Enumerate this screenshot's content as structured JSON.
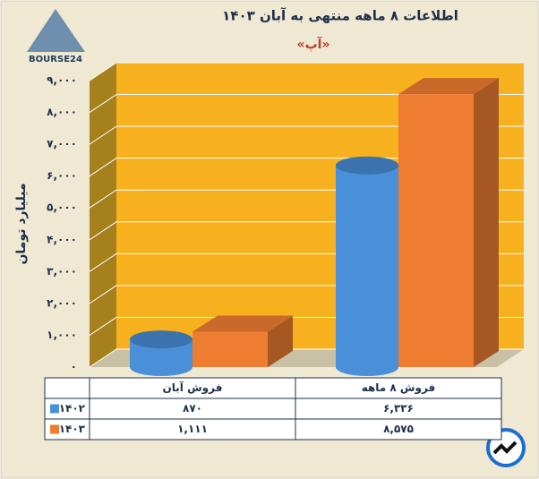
{
  "brand": "BOURSE24",
  "chart_data": {
    "type": "bar3d",
    "title": "اطلاعات ۸ ماهه منتهی به آبان ۱۴۰۳",
    "subtitle": "«آپ»",
    "y_label": "میلیارد تومان",
    "categories": [
      "فروش آبان",
      "فروش ۸ ماهه"
    ],
    "series": [
      {
        "name": "۱۴۰۲",
        "color": "#4a90d9",
        "values": [
          870,
          6336
        ],
        "value_labels": [
          "۸۷۰",
          "۶,۳۳۶"
        ]
      },
      {
        "name": "۱۴۰۳",
        "color": "#ee7d31",
        "values": [
          1111,
          8575
        ],
        "value_labels": [
          "۱,۱۱۱",
          "۸,۵۷۵"
        ]
      }
    ],
    "ylim": [
      0,
      9000
    ],
    "yticks": [
      {
        "value": 0,
        "label": "۰"
      },
      {
        "value": 1000,
        "label": "۱,۰۰۰"
      },
      {
        "value": 2000,
        "label": "۲,۰۰۰"
      },
      {
        "value": 3000,
        "label": "۳,۰۰۰"
      },
      {
        "value": 4000,
        "label": "۴,۰۰۰"
      },
      {
        "value": 5000,
        "label": "۵,۰۰۰"
      },
      {
        "value": 6000,
        "label": "۶,۰۰۰"
      },
      {
        "value": 7000,
        "label": "۷,۰۰۰"
      },
      {
        "value": 8000,
        "label": "۸,۰۰۰"
      },
      {
        "value": 9000,
        "label": "۹,۰۰۰"
      }
    ],
    "grid": true
  }
}
